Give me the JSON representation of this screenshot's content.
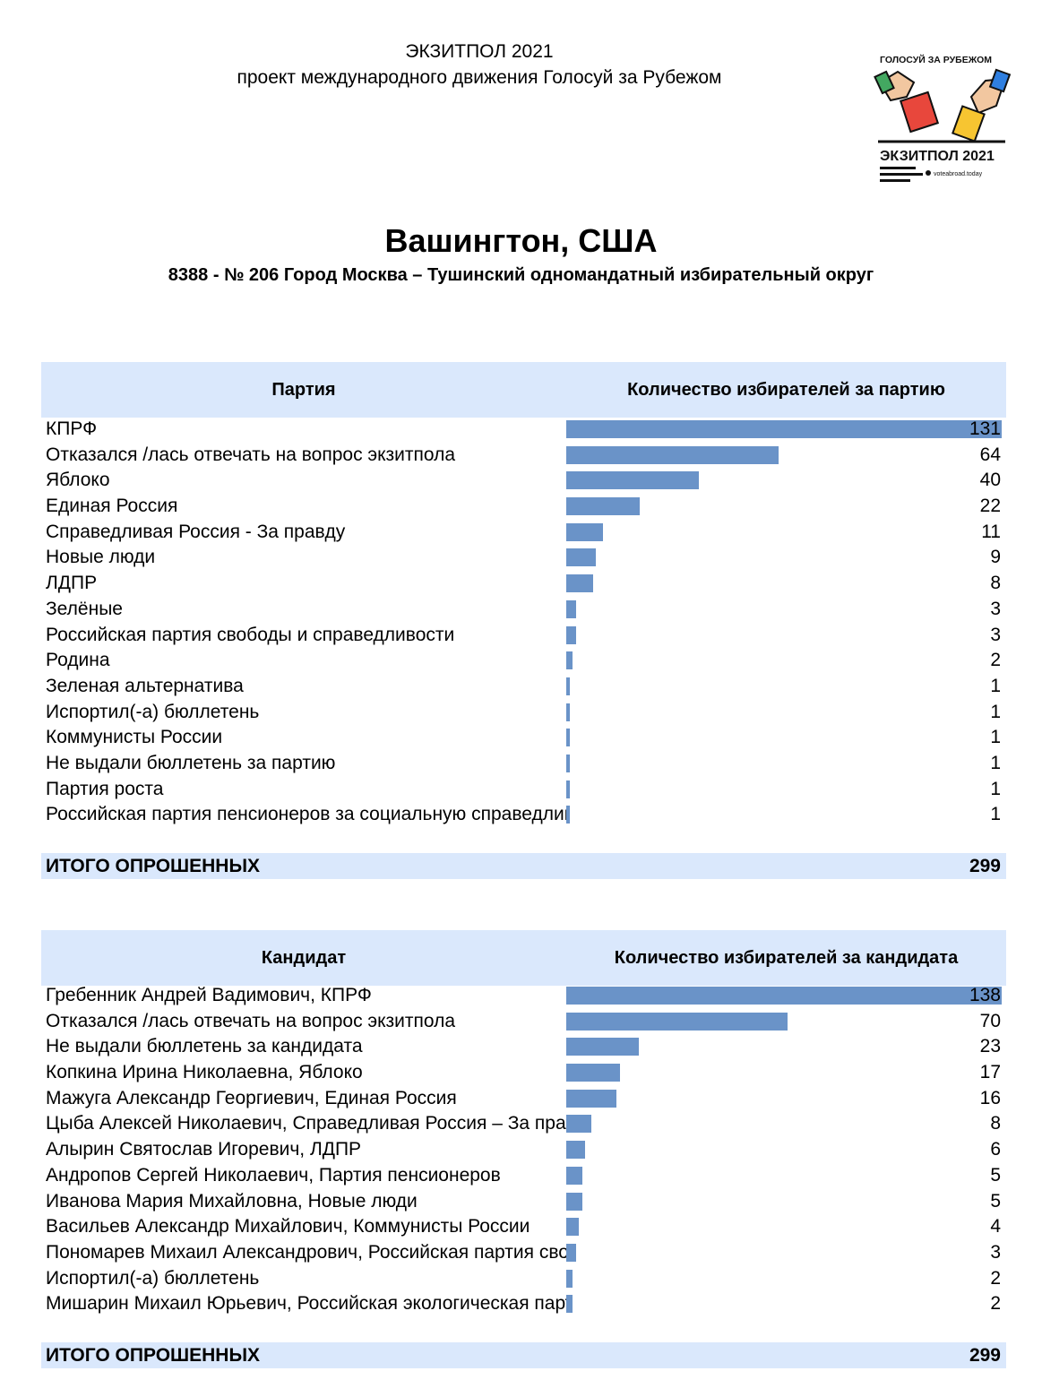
{
  "header": {
    "line1": "ЭКЗИТПОЛ 2021",
    "line2": "проект международного движения Голосуй за Рубежом"
  },
  "logo": {
    "top_text": "ГОЛОСУЙ ЗА РУБЕЖОМ",
    "main_text": "ЭКЗИТПОЛ 2021",
    "site": "voteabroad.today"
  },
  "title": "Вашингтон, США",
  "subtitle": "8388 - № 206 Город Москва – Тушинский одномандатный избирательный округ",
  "colors": {
    "header_bg": "#dae8fc",
    "bar": "#6a93c8"
  },
  "party_table": {
    "col1": "Партия",
    "col2": "Количество избирателей за партию",
    "rows": [
      {
        "label": "КПРФ",
        "value": 131
      },
      {
        "label": "Отказался /лась отвечать на вопрос экзитпола",
        "value": 64
      },
      {
        "label": "Яблоко",
        "value": 40
      },
      {
        "label": "Единая Россия",
        "value": 22
      },
      {
        "label": "Справедливая Россия - За правду",
        "value": 11
      },
      {
        "label": "Новые люди",
        "value": 9
      },
      {
        "label": "ЛДПР",
        "value": 8
      },
      {
        "label": "Зелёные",
        "value": 3
      },
      {
        "label": "Российская партия свободы и справедливости",
        "value": 3
      },
      {
        "label": "Родина",
        "value": 2
      },
      {
        "label": "Зеленая альтернатива",
        "value": 1
      },
      {
        "label": "Испортил(-а) бюллетень",
        "value": 1
      },
      {
        "label": "Коммунисты России",
        "value": 1
      },
      {
        "label": "Не выдали бюллетень за партию",
        "value": 1
      },
      {
        "label": "Партия роста",
        "value": 1
      },
      {
        "label": "Российская партия пенсионеров за социальную справедливость",
        "value": 1
      }
    ],
    "total_label": "ИТОГО ОПРОШЕННЫХ",
    "total_value": "299"
  },
  "candidate_table": {
    "col1": "Кандидат",
    "col2": "Количество избирателей за кандидата",
    "rows": [
      {
        "label": "Гребенник Андрей Вадимович, КПРФ",
        "value": 138
      },
      {
        "label": "Отказался /лась отвечать на вопрос экзитпола",
        "value": 70
      },
      {
        "label": "Не выдали бюллетень за кандидата",
        "value": 23
      },
      {
        "label": "Копкина Ирина Николаевна, Яблоко",
        "value": 17
      },
      {
        "label": "Мажуга Александр Георгиевич, Единая Россия",
        "value": 16
      },
      {
        "label": "Цыба Алексей Николаевич, Справедливая Россия – За правду",
        "value": 8
      },
      {
        "label": "Алырин Святослав Игоревич, ЛДПР",
        "value": 6
      },
      {
        "label": "Андропов Сергей Николаевич, Партия пенсионеров",
        "value": 5
      },
      {
        "label": "Иванова Мария Михайловна, Новые люди",
        "value": 5
      },
      {
        "label": "Васильев Александр Михайлович, Коммунисты России",
        "value": 4
      },
      {
        "label": "Пономарев Михаил Александрович, Российская партия свободы и справедливости",
        "value": 3
      },
      {
        "label": "Испортил(-а) бюллетень",
        "value": 2
      },
      {
        "label": "Мишарин Михаил Юрьевич, Российская экологическая партия Зелёные",
        "value": 2
      }
    ],
    "total_label": "ИТОГО ОПРОШЕННЫХ",
    "total_value": "299"
  }
}
